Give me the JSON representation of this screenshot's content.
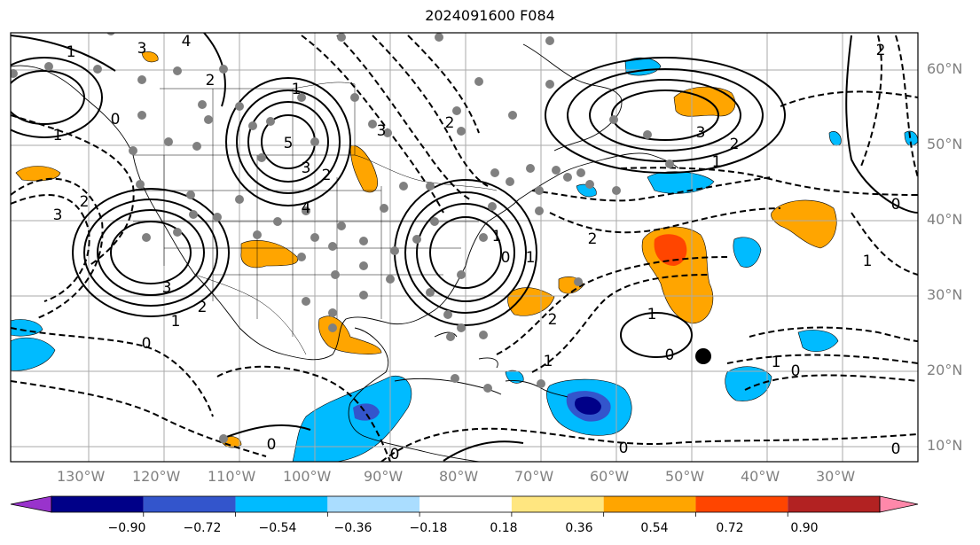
{
  "title": "2024091600 F084",
  "lon_labels": [
    "130°W",
    "120°W",
    "110°W",
    "100°W",
    "90°W",
    "80°W",
    "70°W",
    "60°W",
    "50°W",
    "40°W",
    "30°W"
  ],
  "lat_labels": [
    "60°N",
    "50°N",
    "40°N",
    "30°N",
    "20°N",
    "10°N"
  ],
  "colorbar": {
    "colors": [
      "#9933cc",
      "#000088",
      "#3355cc",
      "#00bbff",
      "#aaddff",
      "#ffffff",
      "#ffe680",
      "#ffa500",
      "#ff4500",
      "#b22222",
      "#ff88aa"
    ],
    "ticks": [
      "−0.90",
      "−0.72",
      "−0.54",
      "−0.36",
      "−0.18",
      "0.18",
      "0.36",
      "0.54",
      "0.72",
      "0.90"
    ]
  },
  "contour_labels": [
    "4",
    "3",
    "2",
    "1",
    "0",
    "1",
    "2",
    "3",
    "3",
    "2",
    "1",
    "0",
    "1",
    "2",
    "3",
    "4",
    "5",
    "3",
    "2",
    "1",
    "0",
    "1",
    "2",
    "1",
    "0",
    "2",
    "3",
    "1",
    "0",
    "1",
    "2",
    "0",
    "0",
    "0",
    "0",
    "1",
    "2",
    "1",
    "0"
  ]
}
